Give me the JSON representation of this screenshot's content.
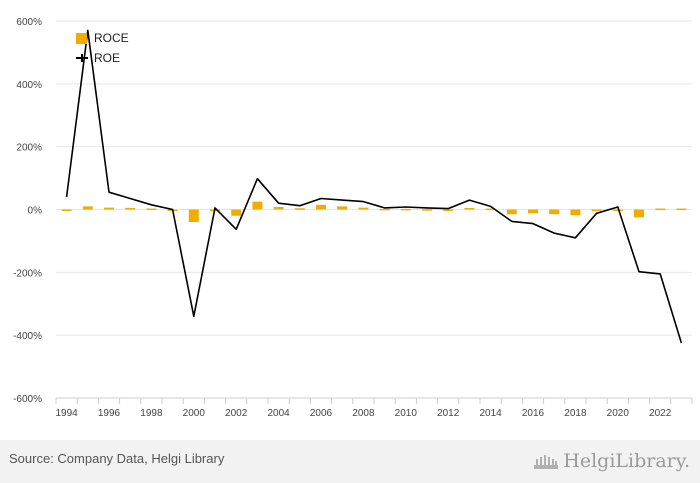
{
  "colors": {
    "roce": "#f2ac00",
    "roe": "#000000",
    "grid": "#e6e6e6",
    "footer_bg": "#f2f2f2"
  },
  "legend": {
    "roce": "ROCE",
    "roe": "ROE"
  },
  "footer": {
    "source": "Source: Company Data, Helgi Library",
    "brand": "HelgiLibrary."
  },
  "chart_data": {
    "type": "bar",
    "title": "",
    "xlabel": "",
    "ylabel": "",
    "ylim": [
      -600,
      600
    ],
    "yticks": [
      600,
      400,
      200,
      0,
      -200,
      -400,
      -600
    ],
    "ytick_labels": [
      "600%",
      "400%",
      "200%",
      "0%",
      "-200%",
      "-400%",
      "-600%"
    ],
    "xtick_labels": [
      "1994",
      "1996",
      "1998",
      "2000",
      "2002",
      "2004",
      "2006",
      "2008",
      "2010",
      "2012",
      "2014",
      "2016",
      "2018",
      "2020",
      "2022"
    ],
    "categories": [
      1994,
      1995,
      1996,
      1997,
      1998,
      1999,
      2000,
      2001,
      2002,
      2003,
      2004,
      2005,
      2006,
      2007,
      2008,
      2009,
      2010,
      2011,
      2012,
      2013,
      2014,
      2015,
      2016,
      2017,
      2018,
      2019,
      2020,
      2021,
      2022,
      2023
    ],
    "grid": true,
    "legend_position": "top-left",
    "series": [
      {
        "name": "ROCE",
        "type": "bar",
        "values": [
          -3,
          10,
          6,
          5,
          3,
          0,
          -40,
          0,
          -20,
          25,
          8,
          4,
          15,
          10,
          6,
          2,
          2,
          1,
          0,
          5,
          3,
          -15,
          -12,
          -15,
          -18,
          0,
          0,
          -25,
          3,
          3
        ]
      },
      {
        "name": "ROE",
        "type": "line",
        "values": [
          40,
          570,
          55,
          35,
          15,
          0,
          -340,
          5,
          -63,
          98,
          20,
          12,
          35,
          30,
          25,
          5,
          8,
          5,
          3,
          30,
          10,
          -38,
          -45,
          -75,
          -90,
          -12,
          8,
          -198,
          -205,
          -425
        ]
      }
    ]
  }
}
